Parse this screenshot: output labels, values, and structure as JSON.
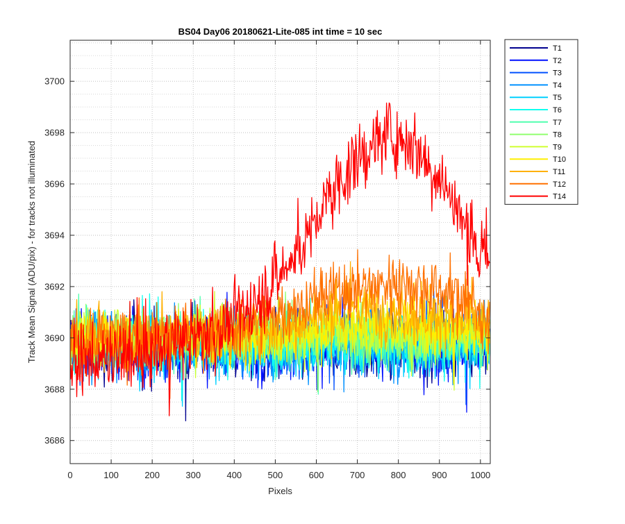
{
  "chart_data": {
    "type": "line",
    "title": "BS04 Day06 20180621-Lite-085 int time = 10 sec",
    "xlabel": "Pixels",
    "ylabel": "Track Mean Signal (ADU/pix) - for tracks not illuminated",
    "xlim": [
      0,
      1024
    ],
    "ylim": [
      3685.1,
      3701.6
    ],
    "xticks": [
      "0",
      "100",
      "200",
      "300",
      "400",
      "500",
      "600",
      "700",
      "800",
      "900",
      "1000"
    ],
    "yticks": [
      "3686",
      "3688",
      "3690",
      "3692",
      "3694",
      "3696",
      "3698",
      "3700"
    ],
    "grid": "major dotted, minor dotted",
    "legend_position": "outside-right-top",
    "series": [
      {
        "name": "T1",
        "color": "#00008f",
        "baseline": [
          [
            0,
            3689.6
          ],
          [
            1024,
            3689.6
          ]
        ],
        "noise": 1.6
      },
      {
        "name": "T2",
        "color": "#0010ff",
        "baseline": [
          [
            0,
            3689.9
          ],
          [
            30,
            3690.4
          ],
          [
            60,
            3689.7
          ],
          [
            1024,
            3689.7
          ]
        ],
        "noise": 1.7
      },
      {
        "name": "T3",
        "color": "#0050ff",
        "baseline": [
          [
            0,
            3689.7
          ],
          [
            1024,
            3689.8
          ]
        ],
        "noise": 1.6
      },
      {
        "name": "T4",
        "color": "#0090ff",
        "baseline": [
          [
            0,
            3689.6
          ],
          [
            1024,
            3689.7
          ]
        ],
        "noise": 1.5
      },
      {
        "name": "T5",
        "color": "#00d0ff",
        "baseline": [
          [
            0,
            3689.6
          ],
          [
            1024,
            3689.7
          ]
        ],
        "noise": 1.5
      },
      {
        "name": "T6",
        "color": "#10ffef",
        "baseline": [
          [
            0,
            3689.8
          ],
          [
            1024,
            3689.8
          ]
        ],
        "noise": 1.5
      },
      {
        "name": "T7",
        "color": "#50ffaf",
        "baseline": [
          [
            0,
            3690.0
          ],
          [
            1024,
            3689.9
          ]
        ],
        "noise": 1.4
      },
      {
        "name": "T8",
        "color": "#90ff6f",
        "baseline": [
          [
            0,
            3690.0
          ],
          [
            1024,
            3690.0
          ]
        ],
        "noise": 1.4
      },
      {
        "name": "T9",
        "color": "#cfff30",
        "baseline": [
          [
            0,
            3690.1
          ],
          [
            1024,
            3690.1
          ]
        ],
        "noise": 1.4
      },
      {
        "name": "T10",
        "color": "#ffef00",
        "baseline": [
          [
            0,
            3690.0
          ],
          [
            400,
            3690.0
          ],
          [
            700,
            3690.6
          ],
          [
            1024,
            3690.2
          ]
        ],
        "noise": 1.4
      },
      {
        "name": "T11",
        "color": "#ffb000",
        "baseline": [
          [
            0,
            3690.0
          ],
          [
            400,
            3690.1
          ],
          [
            700,
            3691.2
          ],
          [
            1024,
            3690.5
          ]
        ],
        "noise": 1.5
      },
      {
        "name": "T12",
        "color": "#ff7000",
        "baseline": [
          [
            0,
            3689.8
          ],
          [
            350,
            3690.2
          ],
          [
            500,
            3690.9
          ],
          [
            650,
            3691.8
          ],
          [
            800,
            3692.2
          ],
          [
            950,
            3691.7
          ],
          [
            1024,
            3690.6
          ]
        ],
        "noise": 1.6
      },
      {
        "name": "T14",
        "color": "#ff0000",
        "baseline": [
          [
            0,
            3689.0
          ],
          [
            150,
            3689.2
          ],
          [
            350,
            3690.2
          ],
          [
            450,
            3691.3
          ],
          [
            550,
            3693.2
          ],
          [
            650,
            3696.0
          ],
          [
            760,
            3697.9
          ],
          [
            820,
            3697.8
          ],
          [
            900,
            3696.4
          ],
          [
            960,
            3694.4
          ],
          [
            1024,
            3692.6
          ]
        ],
        "noise": 1.8
      }
    ]
  }
}
